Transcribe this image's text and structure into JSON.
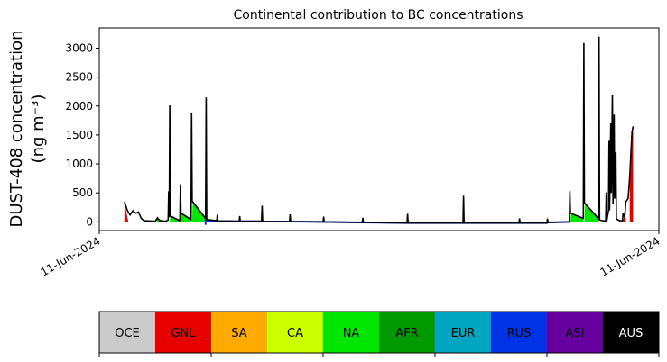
{
  "chart_data": {
    "type": "area",
    "title": "Continental contribution to BC concentrations",
    "ylabel_line1": "DUST-408 concentration",
    "ylabel_line2": "(ng m⁻³)",
    "x_tick_labels": [
      "11-Jun-2024",
      "11-Jun-2024"
    ],
    "y_ticks": [
      0,
      500,
      1000,
      1500,
      2000,
      2500,
      3000
    ],
    "ylim": [
      -150,
      3350
    ],
    "xlim": [
      0,
      100
    ],
    "grid": false,
    "series_total": [
      [
        4.5,
        350
      ],
      [
        5.0,
        200
      ],
      [
        5.5,
        120
      ],
      [
        6.0,
        190
      ],
      [
        6.5,
        150
      ],
      [
        7.0,
        170
      ],
      [
        7.5,
        60
      ],
      [
        8.0,
        20
      ],
      [
        10.0,
        10
      ],
      [
        10.4,
        70
      ],
      [
        10.8,
        20
      ],
      [
        11.8,
        10
      ],
      [
        12.3,
        30
      ],
      [
        12.4,
        530
      ],
      [
        12.5,
        80
      ],
      [
        12.6,
        2010
      ],
      [
        12.7,
        100
      ],
      [
        14.4,
        20
      ],
      [
        14.5,
        650
      ],
      [
        14.6,
        150
      ],
      [
        16.4,
        40
      ],
      [
        16.5,
        1890
      ],
      [
        16.6,
        360
      ],
      [
        19.0,
        60
      ],
      [
        19.1,
        2150
      ],
      [
        19.2,
        40
      ],
      [
        21.0,
        20
      ],
      [
        21.1,
        120
      ],
      [
        21.2,
        15
      ],
      [
        25.0,
        10
      ],
      [
        25.1,
        100
      ],
      [
        25.2,
        10
      ],
      [
        29.0,
        10
      ],
      [
        29.1,
        280
      ],
      [
        29.2,
        5
      ],
      [
        34.0,
        5
      ],
      [
        34.1,
        130
      ],
      [
        34.2,
        5
      ],
      [
        40.0,
        0
      ],
      [
        40.1,
        90
      ],
      [
        40.2,
        0
      ],
      [
        47.0,
        -10
      ],
      [
        47.1,
        70
      ],
      [
        47.2,
        -10
      ],
      [
        55.0,
        -20
      ],
      [
        55.1,
        140
      ],
      [
        55.2,
        -20
      ],
      [
        65.0,
        -20
      ],
      [
        65.1,
        450
      ],
      [
        65.2,
        -20
      ],
      [
        75.0,
        -20
      ],
      [
        75.1,
        60
      ],
      [
        75.2,
        -20
      ],
      [
        80.0,
        -20
      ],
      [
        80.1,
        50
      ],
      [
        80.2,
        -10
      ],
      [
        84.0,
        0
      ],
      [
        84.1,
        530
      ],
      [
        84.2,
        150
      ],
      [
        86.5,
        60
      ],
      [
        86.6,
        3090
      ],
      [
        86.7,
        330
      ],
      [
        89.2,
        60
      ],
      [
        89.3,
        3200
      ],
      [
        89.4,
        30
      ],
      [
        90.5,
        10
      ],
      [
        90.6,
        510
      ],
      [
        90.7,
        20
      ],
      [
        91.0,
        200
      ],
      [
        91.1,
        1400
      ],
      [
        91.2,
        200
      ],
      [
        91.4,
        1700
      ],
      [
        91.5,
        500
      ],
      [
        91.7,
        2200
      ],
      [
        91.8,
        300
      ],
      [
        92.0,
        1850
      ],
      [
        92.1,
        400
      ],
      [
        92.3,
        1200
      ],
      [
        92.4,
        50
      ],
      [
        93.0,
        20
      ],
      [
        93.5,
        20
      ],
      [
        93.6,
        150
      ],
      [
        93.9,
        80
      ],
      [
        94.1,
        350
      ],
      [
        94.5,
        400
      ],
      [
        94.8,
        800
      ],
      [
        95.2,
        1550
      ],
      [
        95.4,
        1650
      ]
    ],
    "regions": [
      {
        "name": "OCE",
        "color": "#cbcbcb"
      },
      {
        "name": "GNL",
        "color": "#e60000"
      },
      {
        "name": "SA",
        "color": "#ffaa00"
      },
      {
        "name": "CA",
        "color": "#ccff00"
      },
      {
        "name": "NA",
        "color": "#00e600"
      },
      {
        "name": "AFR",
        "color": "#009900"
      },
      {
        "name": "EUR",
        "color": "#00a6bf"
      },
      {
        "name": "RUS",
        "color": "#0033e6"
      },
      {
        "name": "ASI",
        "color": "#66009e"
      },
      {
        "name": "AUS",
        "color": "#000000"
      }
    ],
    "colored_segments": [
      {
        "region": "GNL",
        "points": [
          [
            4.5,
            330
          ],
          [
            5.2,
            0
          ]
        ]
      },
      {
        "region": "NA",
        "points": [
          [
            10.2,
            0
          ],
          [
            10.4,
            60
          ],
          [
            12.0,
            10
          ]
        ]
      },
      {
        "region": "NA",
        "points": [
          [
            12.6,
            0
          ],
          [
            12.7,
            90
          ],
          [
            14.3,
            10
          ]
        ]
      },
      {
        "region": "NA",
        "points": [
          [
            14.6,
            0
          ],
          [
            14.7,
            140
          ],
          [
            16.4,
            30
          ]
        ]
      },
      {
        "region": "NA",
        "points": [
          [
            16.6,
            0
          ],
          [
            16.7,
            350
          ],
          [
            19.0,
            50
          ]
        ]
      },
      {
        "region": "CA",
        "points": [
          [
            19.2,
            0
          ],
          [
            19.3,
            40
          ],
          [
            21.0,
            15
          ]
        ]
      },
      {
        "region": "NA",
        "points": [
          [
            84.2,
            0
          ],
          [
            84.3,
            150
          ],
          [
            86.5,
            50
          ]
        ]
      },
      {
        "region": "NA",
        "points": [
          [
            86.7,
            0
          ],
          [
            86.8,
            320
          ],
          [
            89.2,
            50
          ]
        ]
      },
      {
        "region": "GNL",
        "points": [
          [
            93.6,
            0
          ],
          [
            93.8,
            120
          ],
          [
            94.1,
            70
          ]
        ]
      },
      {
        "region": "GNL",
        "points": [
          [
            94.8,
            0
          ],
          [
            94.8,
            750
          ],
          [
            95.2,
            1500
          ],
          [
            95.4,
            1600
          ]
        ]
      }
    ]
  }
}
